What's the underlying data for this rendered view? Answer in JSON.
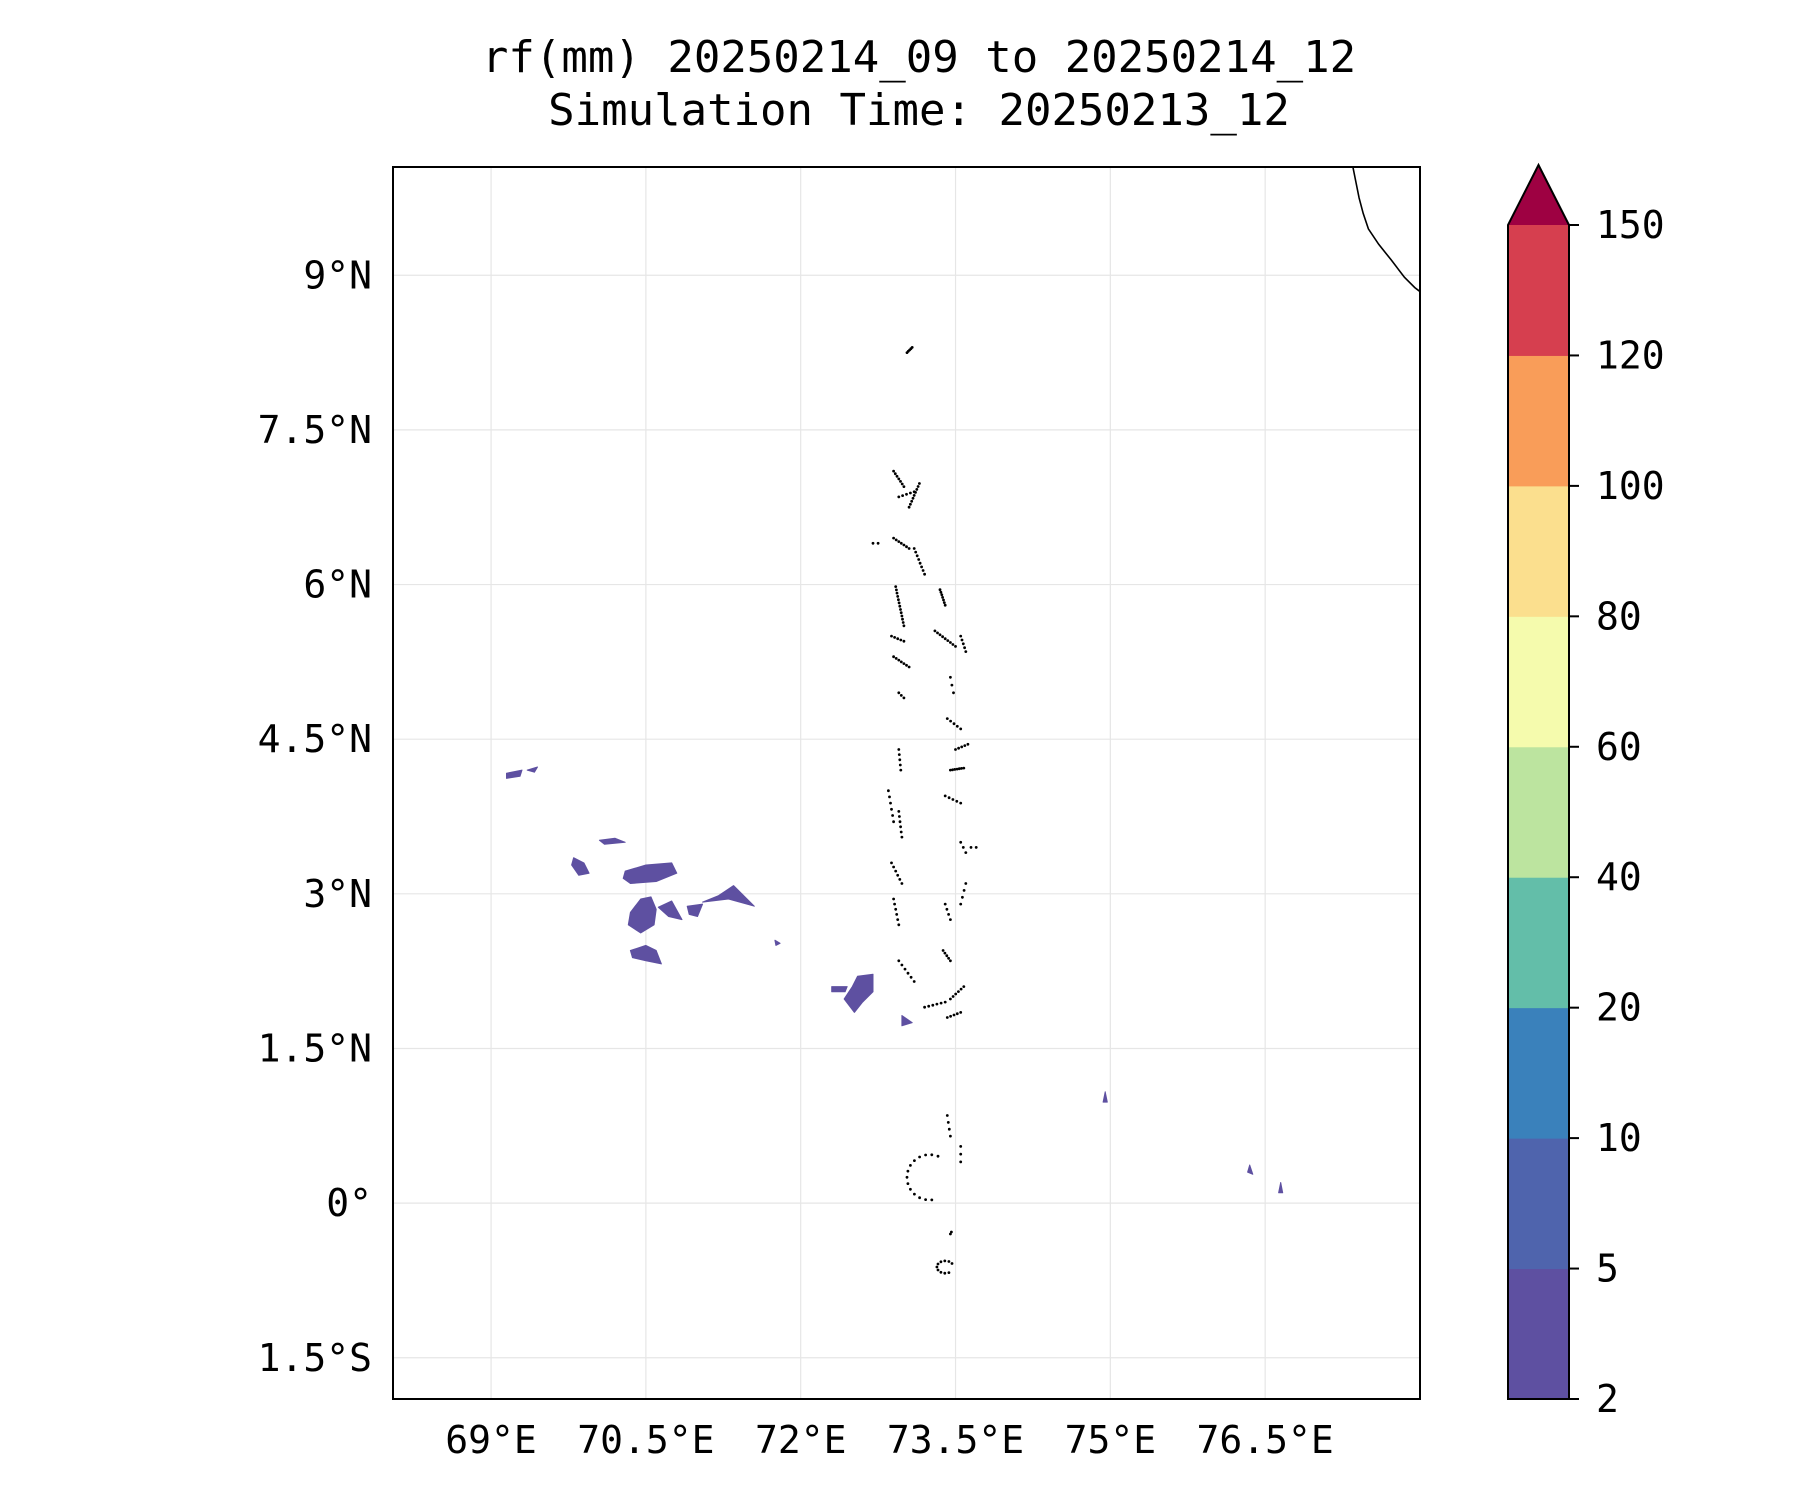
{
  "title": {
    "line1": "rf(mm) 20250214_09 to 20250214_12",
    "line2": "Simulation Time: 20250213_12"
  },
  "map": {
    "lon_range": [
      68.05,
      78.0
    ],
    "lat_range": [
      -1.9,
      10.05
    ],
    "lon_ticks": [
      69,
      70.5,
      72,
      73.5,
      75,
      76.5
    ],
    "lon_tick_labels": [
      "69°E",
      "70.5°E",
      "72°E",
      "73.5°E",
      "75°E",
      "76.5°E"
    ],
    "lat_ticks": [
      9,
      7.5,
      6,
      4.5,
      3,
      1.5,
      0,
      -1.5
    ],
    "lat_tick_labels": [
      "9°N",
      "7.5°N",
      "6°N",
      "4.5°N",
      "3°N",
      "1.5°N",
      "0°",
      "1.5°S"
    ],
    "gridlines": true,
    "coastline_color": "#000000",
    "rain_color": "#5e50a1",
    "mainland_coast": [
      [
        77.35,
        10.05
      ],
      [
        77.38,
        9.9
      ],
      [
        77.41,
        9.75
      ],
      [
        77.45,
        9.6
      ],
      [
        77.5,
        9.45
      ],
      [
        77.6,
        9.3
      ],
      [
        77.72,
        9.15
      ],
      [
        77.85,
        8.98
      ],
      [
        77.95,
        8.88
      ],
      [
        78.12,
        8.75
      ],
      [
        78.3,
        8.65
      ],
      [
        78.5,
        8.62
      ],
      [
        78.6,
        8.72
      ],
      [
        78.75,
        8.78
      ],
      [
        78.85,
        8.88
      ],
      [
        79.0,
        8.93
      ]
    ],
    "rain_patches": [
      [
        [
          69.15,
          4.12
        ],
        [
          69.28,
          4.14
        ],
        [
          69.3,
          4.2
        ],
        [
          69.15,
          4.17
        ]
      ],
      [
        [
          69.35,
          4.2
        ],
        [
          69.45,
          4.23
        ],
        [
          69.42,
          4.18
        ]
      ],
      [
        [
          69.8,
          3.35
        ],
        [
          69.9,
          3.3
        ],
        [
          69.95,
          3.2
        ],
        [
          69.85,
          3.18
        ],
        [
          69.78,
          3.28
        ]
      ],
      [
        [
          70.05,
          3.52
        ],
        [
          70.2,
          3.54
        ],
        [
          70.3,
          3.5
        ],
        [
          70.1,
          3.48
        ]
      ],
      [
        [
          70.3,
          3.22
        ],
        [
          70.5,
          3.28
        ],
        [
          70.75,
          3.3
        ],
        [
          70.8,
          3.2
        ],
        [
          70.6,
          3.12
        ],
        [
          70.35,
          3.1
        ],
        [
          70.28,
          3.15
        ]
      ],
      [
        [
          70.35,
          2.82
        ],
        [
          70.45,
          2.95
        ],
        [
          70.55,
          2.97
        ],
        [
          70.6,
          2.85
        ],
        [
          70.58,
          2.7
        ],
        [
          70.45,
          2.62
        ],
        [
          70.33,
          2.7
        ]
      ],
      [
        [
          70.62,
          2.87
        ],
        [
          70.75,
          2.93
        ],
        [
          70.85,
          2.75
        ],
        [
          70.72,
          2.78
        ]
      ],
      [
        [
          70.9,
          2.88
        ],
        [
          71.05,
          2.9
        ],
        [
          71.0,
          2.78
        ],
        [
          70.92,
          2.8
        ]
      ],
      [
        [
          71.05,
          2.92
        ],
        [
          71.3,
          2.95
        ],
        [
          71.55,
          2.88
        ],
        [
          71.35,
          3.08
        ],
        [
          71.2,
          2.98
        ]
      ],
      [
        [
          70.35,
          2.45
        ],
        [
          70.5,
          2.5
        ],
        [
          70.6,
          2.45
        ],
        [
          70.65,
          2.32
        ],
        [
          70.5,
          2.35
        ],
        [
          70.37,
          2.38
        ]
      ],
      [
        [
          71.75,
          2.55
        ],
        [
          71.8,
          2.52
        ],
        [
          71.76,
          2.5
        ]
      ],
      [
        [
          72.55,
          2.2
        ],
        [
          72.7,
          2.22
        ],
        [
          72.7,
          2.05
        ],
        [
          72.6,
          1.95
        ],
        [
          72.52,
          1.85
        ],
        [
          72.42,
          1.98
        ],
        [
          72.5,
          2.1
        ]
      ],
      [
        [
          72.3,
          2.1
        ],
        [
          72.45,
          2.1
        ],
        [
          72.43,
          2.05
        ],
        [
          72.3,
          2.05
        ]
      ],
      [
        [
          72.98,
          1.82
        ],
        [
          73.08,
          1.75
        ],
        [
          72.98,
          1.72
        ]
      ],
      [
        [
          74.95,
          1.08
        ],
        [
          74.97,
          0.98
        ],
        [
          74.93,
          0.98
        ]
      ],
      [
        [
          76.35,
          0.37
        ],
        [
          76.38,
          0.28
        ],
        [
          76.33,
          0.3
        ]
      ],
      [
        [
          76.65,
          0.2
        ],
        [
          76.67,
          0.1
        ],
        [
          76.63,
          0.1
        ]
      ]
    ]
  },
  "colorbar": {
    "levels": [
      2,
      5,
      10,
      20,
      40,
      60,
      80,
      100,
      120,
      150
    ],
    "tick_labels": [
      "2",
      "5",
      "10",
      "20",
      "40",
      "60",
      "80",
      "100",
      "120",
      "150"
    ],
    "colors": [
      "#5e50a1",
      "#4f64ad",
      "#3a81bb",
      "#63bea9",
      "#bce49f",
      "#f5fbad",
      "#fbdf8e",
      "#f99d59",
      "#d63f4f"
    ],
    "extend_color": "#9e0142"
  }
}
